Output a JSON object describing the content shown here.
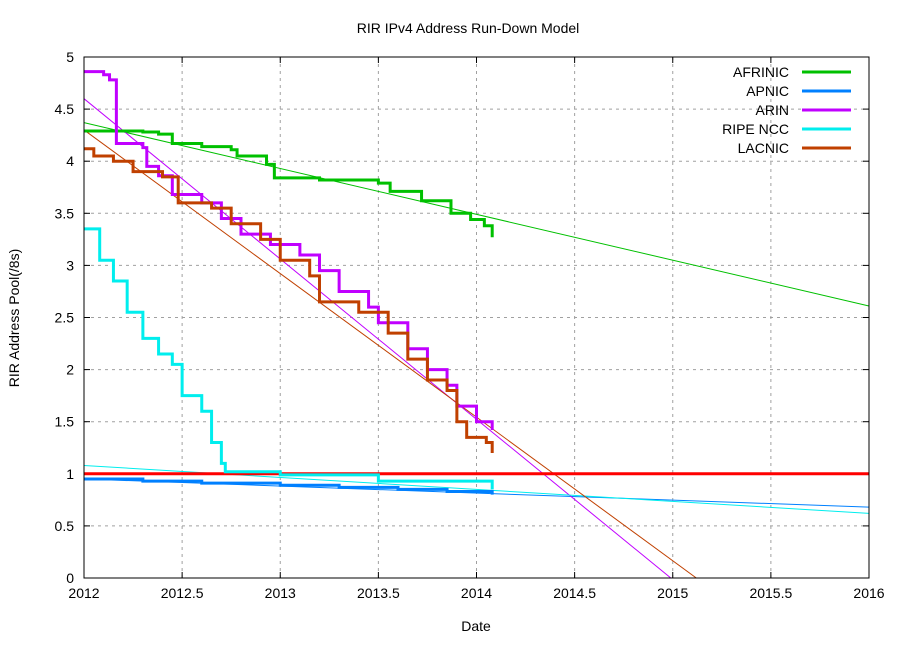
{
  "chart_data": {
    "type": "line",
    "title": "RIR IPv4 Address Run-Down Model",
    "xlabel": "Date",
    "ylabel": "RIR Address Pool(/8s)",
    "xlim": [
      2012,
      2016
    ],
    "ylim": [
      0,
      5
    ],
    "xticks": [
      "2012",
      "2012.5",
      "2013",
      "2013.5",
      "2014",
      "2014.5",
      "2015",
      "2015.5",
      "2016"
    ],
    "yticks": [
      "0",
      "0.5",
      "1",
      "1.5",
      "2",
      "2.5",
      "3",
      "3.5",
      "4",
      "4.5",
      "5"
    ],
    "grid": true,
    "legend_position": "top-right",
    "threshold": {
      "value": 1,
      "color": "#ff0000"
    },
    "series": [
      {
        "name": "AFRINIC",
        "color": "#00c000",
        "points": [
          [
            2012,
            4.29
          ],
          [
            2012.3,
            4.28
          ],
          [
            2012.38,
            4.26
          ],
          [
            2012.45,
            4.17
          ],
          [
            2012.6,
            4.14
          ],
          [
            2012.75,
            4.11
          ],
          [
            2012.78,
            4.05
          ],
          [
            2012.93,
            3.97
          ],
          [
            2012.97,
            3.84
          ],
          [
            2013.2,
            3.82
          ],
          [
            2013.5,
            3.79
          ],
          [
            2013.56,
            3.71
          ],
          [
            2013.72,
            3.62
          ],
          [
            2013.87,
            3.5
          ],
          [
            2013.97,
            3.44
          ],
          [
            2014.04,
            3.38
          ],
          [
            2014.08,
            3.27
          ]
        ],
        "fit": [
          [
            2012,
            4.37
          ],
          [
            2016,
            2.61
          ]
        ]
      },
      {
        "name": "APNIC",
        "color": "#0080ff",
        "points": [
          [
            2012,
            0.95
          ],
          [
            2012.3,
            0.93
          ],
          [
            2012.6,
            0.91
          ],
          [
            2013,
            0.89
          ],
          [
            2013.3,
            0.87
          ],
          [
            2013.6,
            0.85
          ],
          [
            2013.85,
            0.83
          ],
          [
            2014.08,
            0.8
          ]
        ],
        "fit": [
          [
            2012,
            0.95
          ],
          [
            2016,
            0.68
          ]
        ]
      },
      {
        "name": "ARIN",
        "color": "#c000ff",
        "points": [
          [
            2012,
            4.86
          ],
          [
            2012.1,
            4.83
          ],
          [
            2012.13,
            4.78
          ],
          [
            2012.165,
            4.17
          ],
          [
            2012.3,
            4.13
          ],
          [
            2012.32,
            3.95
          ],
          [
            2012.38,
            3.86
          ],
          [
            2012.45,
            3.68
          ],
          [
            2012.6,
            3.6
          ],
          [
            2012.7,
            3.45
          ],
          [
            2012.8,
            3.3
          ],
          [
            2012.95,
            3.2
          ],
          [
            2013.1,
            3.1
          ],
          [
            2013.2,
            2.95
          ],
          [
            2013.3,
            2.75
          ],
          [
            2013.45,
            2.6
          ],
          [
            2013.5,
            2.45
          ],
          [
            2013.65,
            2.2
          ],
          [
            2013.75,
            2.0
          ],
          [
            2013.85,
            1.85
          ],
          [
            2013.9,
            1.65
          ],
          [
            2014.0,
            1.5
          ],
          [
            2014.08,
            1.42
          ]
        ],
        "fit": [
          [
            2012,
            4.6
          ],
          [
            2014.99,
            0
          ]
        ]
      },
      {
        "name": "RIPE NCC",
        "color": "#00eeee",
        "points": [
          [
            2012,
            3.35
          ],
          [
            2012.08,
            3.05
          ],
          [
            2012.15,
            2.85
          ],
          [
            2012.22,
            2.55
          ],
          [
            2012.3,
            2.3
          ],
          [
            2012.38,
            2.15
          ],
          [
            2012.45,
            2.05
          ],
          [
            2012.5,
            1.75
          ],
          [
            2012.6,
            1.6
          ],
          [
            2012.65,
            1.3
          ],
          [
            2012.7,
            1.1
          ],
          [
            2012.72,
            1.02
          ],
          [
            2013,
            0.99
          ],
          [
            2013.5,
            0.93
          ],
          [
            2014.08,
            0.85
          ]
        ],
        "fit": [
          [
            2012,
            1.08
          ],
          [
            2016,
            0.62
          ]
        ]
      },
      {
        "name": "LACNIC",
        "color": "#c04000",
        "points": [
          [
            2012,
            4.12
          ],
          [
            2012.05,
            4.05
          ],
          [
            2012.15,
            4.0
          ],
          [
            2012.25,
            3.9
          ],
          [
            2012.4,
            3.85
          ],
          [
            2012.48,
            3.6
          ],
          [
            2012.65,
            3.55
          ],
          [
            2012.75,
            3.4
          ],
          [
            2012.9,
            3.25
          ],
          [
            2013.0,
            3.05
          ],
          [
            2013.15,
            2.9
          ],
          [
            2013.2,
            2.65
          ],
          [
            2013.4,
            2.55
          ],
          [
            2013.55,
            2.35
          ],
          [
            2013.65,
            2.1
          ],
          [
            2013.75,
            1.9
          ],
          [
            2013.85,
            1.8
          ],
          [
            2013.9,
            1.5
          ],
          [
            2013.95,
            1.35
          ],
          [
            2014.05,
            1.3
          ],
          [
            2014.08,
            1.2
          ]
        ],
        "fit": [
          [
            2012,
            4.3
          ],
          [
            2015.12,
            0
          ]
        ]
      }
    ]
  }
}
